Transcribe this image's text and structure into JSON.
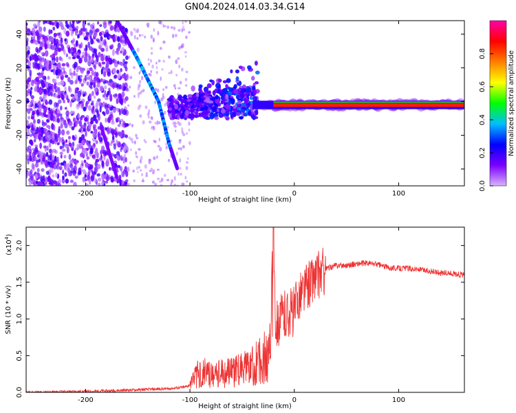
{
  "title": "GN04.2024.014.03.34.G14",
  "chart_data": [
    {
      "type": "heatmap",
      "xlabel": "Height of straight line (km)",
      "ylabel": "Frequency (Hz)",
      "xlim": [
        -257,
        163
      ],
      "ylim": [
        -50,
        48
      ],
      "xticks": [
        -200,
        -100,
        0,
        100
      ],
      "yticks": [
        -40,
        -20,
        0,
        20,
        40
      ],
      "colorbar": {
        "label": "Normalized spectral amplitude",
        "range": [
          0,
          1
        ],
        "ticks": [
          0.0,
          0.2,
          0.4,
          0.6,
          0.8
        ],
        "colors": [
          "#d9b3ff",
          "#7a00ff",
          "#0000ff",
          "#00bfff",
          "#00ff00",
          "#ffff00",
          "#ff7f00",
          "#ff0000",
          "#ff00aa"
        ]
      },
      "features": {
        "diagonal_line": {
          "points": [
            [
              -170,
              48
            ],
            [
              -150,
              25
            ],
            [
              -130,
              0
            ],
            [
              -120,
              -25
            ],
            [
              -112,
              -40
            ]
          ],
          "amplitude": 0.35
        },
        "steady_tone": {
          "x_range": [
            -40,
            163
          ],
          "frequency": -2,
          "amplitude": 0.85
        }
      }
    },
    {
      "type": "line",
      "xlabel": "Height of straight line (km)",
      "ylabel": "SNR (10 * v/v)",
      "exponent_label": "(x10",
      "exponent": "4",
      "exponent_close": ")",
      "xlim": [
        -257,
        163
      ],
      "ylim": [
        0,
        2.25
      ],
      "xticks": [
        -200,
        -100,
        0,
        100
      ],
      "yticks": [
        0.0,
        0.5,
        1.0,
        1.5,
        2.0
      ],
      "color": "#ee3333",
      "x": [
        -257,
        -240,
        -220,
        -200,
        -180,
        -160,
        -140,
        -120,
        -105,
        -100,
        -95,
        -90,
        -80,
        -70,
        -60,
        -50,
        -40,
        -35,
        -30,
        -25,
        -22,
        -20,
        -18,
        -15,
        -10,
        -5,
        0,
        5,
        10,
        15,
        20,
        25,
        30,
        40,
        50,
        60,
        70,
        80,
        90,
        100,
        110,
        120,
        130,
        140,
        150,
        163
      ],
      "y": [
        0.0,
        0.0,
        0.01,
        0.01,
        0.02,
        0.03,
        0.04,
        0.05,
        0.07,
        0.1,
        0.25,
        0.3,
        0.28,
        0.3,
        0.3,
        0.35,
        0.4,
        0.45,
        0.5,
        0.6,
        0.85,
        2.3,
        1.0,
        0.95,
        1.05,
        1.1,
        1.1,
        1.35,
        1.4,
        1.5,
        1.55,
        1.62,
        1.68,
        1.73,
        1.73,
        1.75,
        1.76,
        1.74,
        1.7,
        1.69,
        1.69,
        1.67,
        1.65,
        1.63,
        1.62,
        1.6
      ]
    }
  ]
}
